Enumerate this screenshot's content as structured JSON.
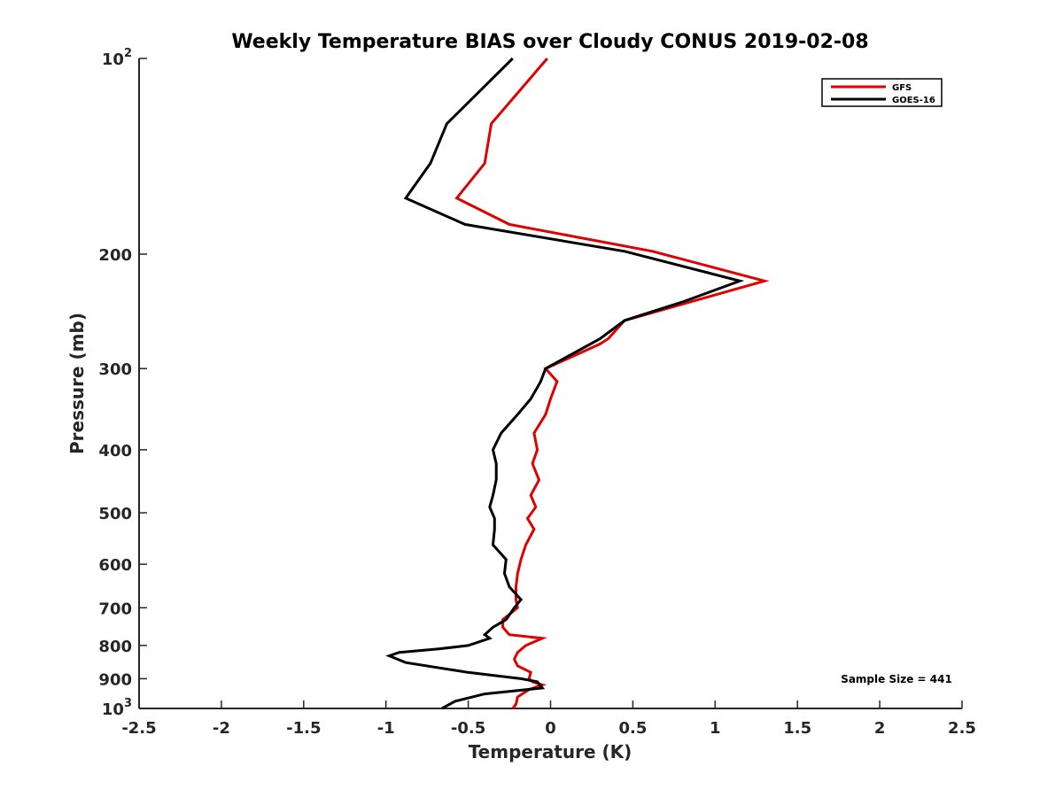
{
  "chart_data": {
    "type": "line",
    "title": "Weekly Temperature BIAS over Cloudy CONUS 2019-02-08",
    "xlabel": "Temperature (K)",
    "ylabel": "Pressure (mb)",
    "xlim": [
      -2.5,
      2.5
    ],
    "ylim": [
      1000,
      100
    ],
    "yscale": "log",
    "y_reversed": true,
    "grid": false,
    "legend_position": "top-right",
    "x_ticks": [
      -2.5,
      -2,
      -1.5,
      -1,
      -0.5,
      0,
      0.5,
      1,
      1.5,
      2,
      2.5
    ],
    "x_tick_labels": [
      "-2.5",
      "-2",
      "-1.5",
      "-1",
      "-0.5",
      "0",
      "0.5",
      "1",
      "1.5",
      "2",
      "2.5"
    ],
    "y_ticks": [
      {
        "value": 100,
        "base": "10",
        "exp": "2"
      },
      {
        "value": 200,
        "label": "200"
      },
      {
        "value": 300,
        "label": "300"
      },
      {
        "value": 400,
        "label": "400"
      },
      {
        "value": 500,
        "label": "500"
      },
      {
        "value": 600,
        "label": "600"
      },
      {
        "value": 700,
        "label": "700"
      },
      {
        "value": 800,
        "label": "800"
      },
      {
        "value": 900,
        "label": "900"
      },
      {
        "value": 1000,
        "base": "10",
        "exp": "3"
      }
    ],
    "series": [
      {
        "name": "GFS",
        "color": "#e00000",
        "x": [
          -0.02,
          -0.36,
          -0.4,
          -0.57,
          -0.25,
          0.62,
          1.3,
          0.45,
          0.35,
          0.3,
          -0.03,
          0.04,
          0.0,
          -0.03,
          -0.1,
          -0.08,
          -0.11,
          -0.07,
          -0.12,
          -0.09,
          -0.14,
          -0.1,
          -0.15,
          -0.18,
          -0.2,
          -0.21,
          -0.21,
          -0.2,
          -0.29,
          -0.29,
          -0.25,
          -0.05,
          -0.15,
          -0.2,
          -0.22,
          -0.2,
          -0.12,
          -0.13,
          -0.11,
          -0.05,
          -0.13,
          -0.2,
          -0.21,
          -0.23
        ],
        "y": [
          100,
          126,
          145,
          164,
          180,
          198,
          220,
          253,
          270,
          275,
          300,
          314,
          334,
          353,
          377,
          400,
          420,
          445,
          470,
          490,
          510,
          530,
          560,
          590,
          620,
          650,
          680,
          700,
          730,
          750,
          770,
          780,
          800,
          820,
          840,
          860,
          880,
          900,
          910,
          920,
          935,
          960,
          985,
          1000
        ]
      },
      {
        "name": "GOES-16",
        "color": "#000000",
        "x": [
          -0.23,
          -0.63,
          -0.73,
          -0.88,
          -0.52,
          0.45,
          1.15,
          0.8,
          0.45,
          0.3,
          -0.03,
          -0.06,
          -0.12,
          -0.2,
          -0.3,
          -0.35,
          -0.33,
          -0.33,
          -0.35,
          -0.37,
          -0.34,
          -0.34,
          -0.35,
          -0.27,
          -0.28,
          -0.25,
          -0.18,
          -0.22,
          -0.27,
          -0.35,
          -0.4,
          -0.37,
          -0.5,
          -0.68,
          -0.92,
          -0.98,
          -0.88,
          -0.5,
          -0.18,
          -0.08,
          -0.05,
          -0.4,
          -0.58,
          -0.66
        ],
        "y": [
          100,
          126,
          145,
          164,
          180,
          198,
          220,
          237,
          253,
          270,
          300,
          314,
          334,
          353,
          377,
          400,
          420,
          445,
          470,
          490,
          510,
          530,
          560,
          590,
          620,
          650,
          680,
          700,
          730,
          750,
          770,
          780,
          800,
          810,
          820,
          830,
          850,
          880,
          900,
          910,
          930,
          950,
          975,
          1000
        ]
      }
    ],
    "annotation": "Sample Size = 441"
  }
}
